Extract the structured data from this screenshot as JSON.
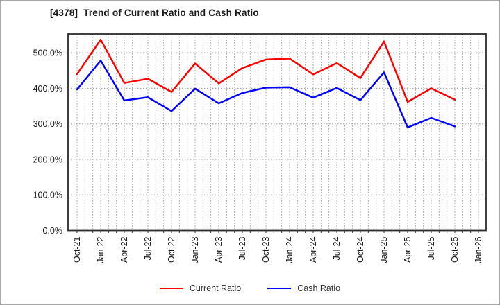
{
  "chart_data": {
    "type": "line",
    "title": "[4378]  Trend of Current Ratio and Cash Ratio",
    "x_tick_labels": [
      "Oct-21",
      "Jan-22",
      "Apr-22",
      "Jul-22",
      "Oct-22",
      "Jan-23",
      "Apr-23",
      "Jul-23",
      "Oct-23",
      "Jan-24",
      "Apr-24",
      "Jul-24",
      "Oct-24",
      "Jan-25",
      "Apr-25",
      "Jul-25",
      "Oct-25",
      "Jan-26"
    ],
    "categories": [
      "Oct-21",
      "Jan-22",
      "Apr-22",
      "Jul-22",
      "Oct-22",
      "Jan-23",
      "Apr-23",
      "Jul-23",
      "Oct-23",
      "Jan-24",
      "Apr-24",
      "Jul-24",
      "Oct-24",
      "Jan-25",
      "Apr-25",
      "Jul-25",
      "Oct-25"
    ],
    "series": [
      {
        "name": "Current Ratio",
        "color": "#ff0000",
        "unit": "%",
        "values": [
          440,
          537,
          415,
          427,
          390,
          470,
          414,
          457,
          481,
          484,
          439,
          471,
          429,
          532,
          362,
          400,
          368
        ]
      },
      {
        "name": "Cash Ratio",
        "color": "#0000ff",
        "unit": "%",
        "values": [
          397,
          478,
          366,
          375,
          336,
          399,
          358,
          387,
          402,
          403,
          374,
          401,
          367,
          445,
          290,
          317,
          293
        ]
      }
    ],
    "ylabel": "",
    "xlabel": "",
    "ylim": [
      0,
      553
    ],
    "y_ticks": [
      {
        "value": 0,
        "label": "0.0%"
      },
      {
        "value": 100,
        "label": "100.0%"
      },
      {
        "value": 200,
        "label": "200.0%"
      },
      {
        "value": 300,
        "label": "300.0%"
      },
      {
        "value": 400,
        "label": "400.0%"
      },
      {
        "value": 500,
        "label": "500.0%"
      }
    ],
    "grid": {
      "horizontal": "dotted at each 100%",
      "vertical": "dotted monthly",
      "color": "#999999"
    },
    "legend_position": "bottom-center",
    "minor_ticks_per_quarter": 3
  }
}
